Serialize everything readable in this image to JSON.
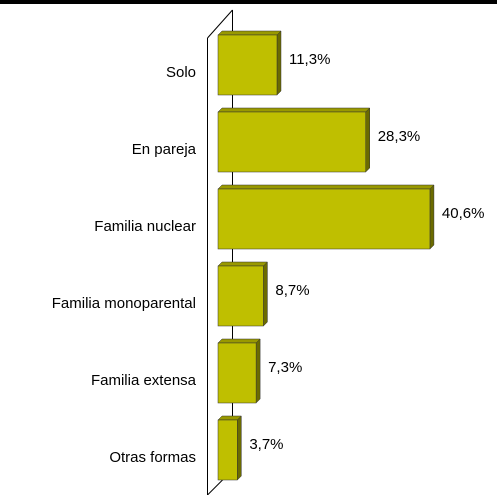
{
  "chart_data": {
    "type": "bar",
    "orientation": "horizontal",
    "categories": [
      "Solo",
      "En pareja",
      "Familia nuclear",
      "Familia monoparental",
      "Familia extensa",
      "Otras formas"
    ],
    "values": [
      11.3,
      28.3,
      40.6,
      8.7,
      7.3,
      3.7
    ],
    "value_labels": [
      "11,3%",
      "28,3%",
      "40,6%",
      "8,7%",
      "7,3%",
      "3,7%"
    ],
    "color": "#bfbf00"
  }
}
